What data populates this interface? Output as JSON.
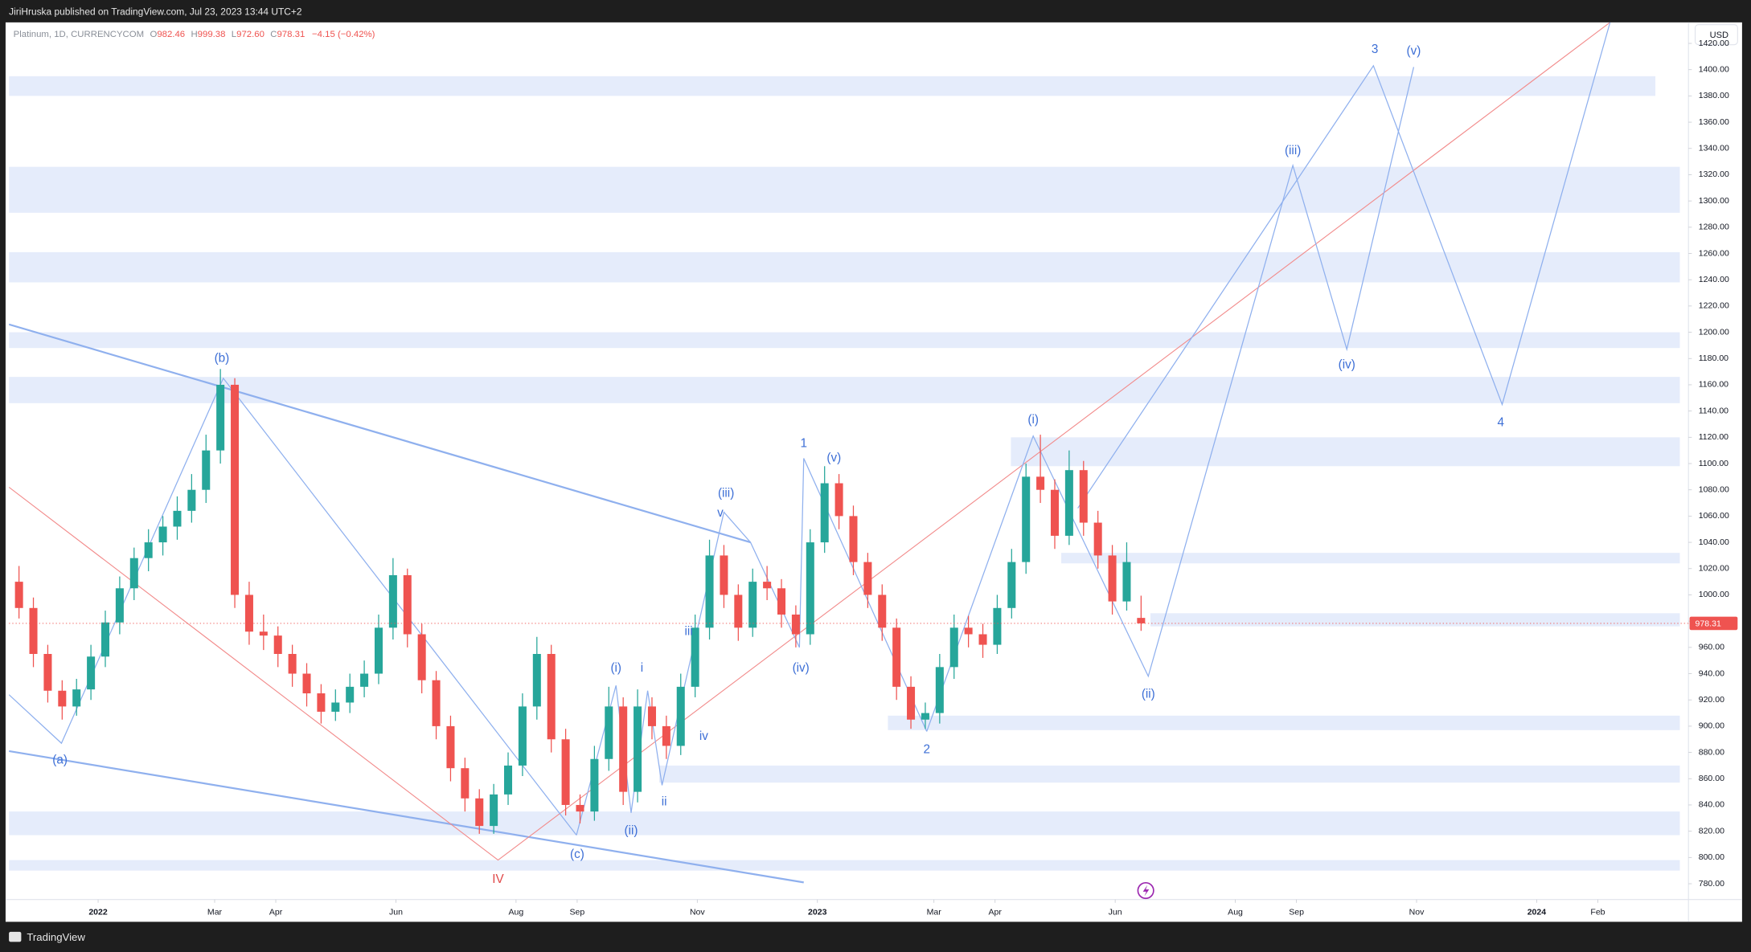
{
  "header": {
    "publisher": "JiriHruska published on TradingView.com, Jul 23, 2023 13:44 UTC+2"
  },
  "legend": {
    "symbol": "Platinum, 1D, CURRENCYCOM",
    "open_label": "O",
    "open": "982.46",
    "high_label": "H",
    "high": "999.38",
    "low_label": "L",
    "low": "972.60",
    "close_label": "C",
    "close": "978.31",
    "change": "−4.15 (−0.42%)"
  },
  "footer": {
    "brand": "TradingView"
  },
  "chart_data": {
    "type": "candlestick",
    "currency": "USD",
    "up_color": "#26a69a",
    "down_color": "#ef5350",
    "grid": false,
    "xlim": [
      2021.876,
      2024.211
    ],
    "ylim": [
      768,
      1436
    ],
    "xticks": [
      2022,
      {
        "value": 2022.162,
        "label": "Mar"
      },
      {
        "value": 2022.247,
        "label": "Apr"
      },
      {
        "value": 2022.414,
        "label": "Jun"
      },
      {
        "value": 2022.581,
        "label": "Aug"
      },
      {
        "value": 2022.666,
        "label": "Sep"
      },
      {
        "value": 2022.833,
        "label": "Nov"
      },
      2023,
      {
        "value": 2023.162,
        "label": "Mar"
      },
      {
        "value": 2023.247,
        "label": "Apr"
      },
      {
        "value": 2023.414,
        "label": "Jun"
      },
      {
        "value": 2023.581,
        "label": "Aug"
      },
      {
        "value": 2023.666,
        "label": "Sep"
      },
      {
        "value": 2023.833,
        "label": "Nov"
      },
      2024,
      {
        "value": 2024.085,
        "label": "Feb"
      }
    ],
    "yticks": [
      {
        "value": 780,
        "label": "780.00"
      },
      {
        "value": 800,
        "label": "800.00"
      },
      {
        "value": 820,
        "label": "820.00"
      },
      {
        "value": 840,
        "label": "840.00"
      },
      {
        "value": 860,
        "label": "860.00"
      },
      {
        "value": 880,
        "label": "880.00"
      },
      {
        "value": 900,
        "label": "900.00"
      },
      {
        "value": 920,
        "label": "920.00"
      },
      {
        "value": 940,
        "label": "940.00"
      },
      {
        "value": 960,
        "label": "960.00"
      },
      {
        "value": 980,
        "label": "980.00"
      },
      {
        "value": 1000,
        "label": "1000.00"
      },
      {
        "value": 1020,
        "label": "1020.00"
      },
      {
        "value": 1040,
        "label": "1040.00"
      },
      {
        "value": 1060,
        "label": "1060.00"
      },
      {
        "value": 1080,
        "label": "1080.00"
      },
      {
        "value": 1100,
        "label": "1100.00"
      },
      {
        "value": 1120,
        "label": "1120.00"
      },
      {
        "value": 1140,
        "label": "1140.00"
      },
      {
        "value": 1160,
        "label": "1160.00"
      },
      {
        "value": 1180,
        "label": "1180.00"
      },
      {
        "value": 1200,
        "label": "1200.00"
      },
      {
        "value": 1220,
        "label": "1220.00"
      },
      {
        "value": 1240,
        "label": "1240.00"
      },
      {
        "value": 1260,
        "label": "1260.00"
      },
      {
        "value": 1280,
        "label": "1280.00"
      },
      {
        "value": 1300,
        "label": "1300.00"
      },
      {
        "value": 1320,
        "label": "1320.00"
      },
      {
        "value": 1340,
        "label": "1340.00"
      },
      {
        "value": 1360,
        "label": "1360.00"
      },
      {
        "value": 1380,
        "label": "1380.00"
      },
      {
        "value": 1400,
        "label": "1400.00"
      },
      {
        "value": 1420,
        "label": "1420.00"
      }
    ],
    "last_price": 978.31,
    "x": [
      2021.89,
      2021.91,
      2021.93,
      2021.95,
      2021.97,
      2021.99,
      2022.01,
      2022.03,
      2022.05,
      2022.07,
      2022.09,
      2022.11,
      2022.13,
      2022.15,
      2022.17,
      2022.19,
      2022.21,
      2022.23,
      2022.25,
      2022.27,
      2022.29,
      2022.31,
      2022.33,
      2022.35,
      2022.37,
      2022.39,
      2022.41,
      2022.43,
      2022.45,
      2022.47,
      2022.49,
      2022.51,
      2022.53,
      2022.55,
      2022.57,
      2022.59,
      2022.61,
      2022.63,
      2022.65,
      2022.67,
      2022.69,
      2022.71,
      2022.73,
      2022.75,
      2022.77,
      2022.79,
      2022.81,
      2022.83,
      2022.85,
      2022.87,
      2022.89,
      2022.91,
      2022.93,
      2022.95,
      2022.97,
      2022.99,
      2023.01,
      2023.03,
      2023.05,
      2023.07,
      2023.09,
      2023.11,
      2023.13,
      2023.15,
      2023.17,
      2023.19,
      2023.21,
      2023.23,
      2023.25,
      2023.27,
      2023.29,
      2023.31,
      2023.33,
      2023.35,
      2023.37,
      2023.39,
      2023.41,
      2023.43,
      2023.45
    ],
    "ohlc": [
      [
        1010,
        1022,
        982,
        990
      ],
      [
        990,
        998,
        945,
        955
      ],
      [
        955,
        962,
        918,
        927
      ],
      [
        927,
        935,
        905,
        915
      ],
      [
        915,
        936,
        908,
        928
      ],
      [
        928,
        962,
        920,
        953
      ],
      [
        953,
        988,
        945,
        979
      ],
      [
        979,
        1014,
        970,
        1005
      ],
      [
        1005,
        1036,
        996,
        1028
      ],
      [
        1028,
        1050,
        1018,
        1040
      ],
      [
        1040,
        1060,
        1030,
        1052
      ],
      [
        1052,
        1075,
        1042,
        1064
      ],
      [
        1064,
        1092,
        1055,
        1080
      ],
      [
        1080,
        1122,
        1070,
        1110
      ],
      [
        1110,
        1172,
        1100,
        1160
      ],
      [
        1160,
        1165,
        990,
        1000
      ],
      [
        1000,
        1010,
        962,
        972
      ],
      [
        972,
        985,
        958,
        969
      ],
      [
        969,
        976,
        945,
        955
      ],
      [
        955,
        962,
        930,
        940
      ],
      [
        940,
        948,
        915,
        925
      ],
      [
        925,
        932,
        902,
        911
      ],
      [
        911,
        928,
        904,
        918
      ],
      [
        918,
        940,
        910,
        930
      ],
      [
        930,
        950,
        922,
        940
      ],
      [
        940,
        985,
        932,
        975
      ],
      [
        975,
        1028,
        966,
        1015
      ],
      [
        1015,
        1020,
        960,
        970
      ],
      [
        970,
        978,
        925,
        935
      ],
      [
        935,
        942,
        890,
        900
      ],
      [
        900,
        908,
        858,
        868
      ],
      [
        868,
        876,
        835,
        845
      ],
      [
        845,
        852,
        818,
        824
      ],
      [
        824,
        856,
        818,
        848
      ],
      [
        848,
        880,
        840,
        870
      ],
      [
        870,
        925,
        862,
        915
      ],
      [
        915,
        968,
        905,
        955
      ],
      [
        955,
        962,
        880,
        890
      ],
      [
        890,
        898,
        832,
        840
      ],
      [
        840,
        848,
        826,
        835
      ],
      [
        835,
        885,
        828,
        875
      ],
      [
        875,
        930,
        866,
        915
      ],
      [
        915,
        922,
        840,
        850
      ],
      [
        850,
        928,
        842,
        915
      ],
      [
        915,
        922,
        890,
        900
      ],
      [
        900,
        908,
        875,
        885
      ],
      [
        885,
        940,
        878,
        930
      ],
      [
        930,
        985,
        922,
        975
      ],
      [
        975,
        1042,
        966,
        1030
      ],
      [
        1030,
        1038,
        990,
        1000
      ],
      [
        1000,
        1008,
        965,
        975
      ],
      [
        975,
        1020,
        968,
        1010
      ],
      [
        1010,
        1022,
        996,
        1005
      ],
      [
        1005,
        1012,
        975,
        985
      ],
      [
        985,
        992,
        960,
        970
      ],
      [
        970,
        1050,
        962,
        1040
      ],
      [
        1040,
        1098,
        1032,
        1085
      ],
      [
        1085,
        1092,
        1050,
        1060
      ],
      [
        1060,
        1068,
        1015,
        1025
      ],
      [
        1025,
        1032,
        990,
        1000
      ],
      [
        1000,
        1008,
        965,
        975
      ],
      [
        975,
        982,
        920,
        930
      ],
      [
        930,
        938,
        898,
        905
      ],
      [
        905,
        918,
        898,
        910
      ],
      [
        910,
        955,
        902,
        945
      ],
      [
        945,
        985,
        936,
        975
      ],
      [
        975,
        984,
        960,
        970
      ],
      [
        970,
        978,
        952,
        962
      ],
      [
        962,
        1000,
        955,
        990
      ],
      [
        990,
        1035,
        982,
        1025
      ],
      [
        1025,
        1100,
        1016,
        1090
      ],
      [
        1090,
        1122,
        1070,
        1080
      ],
      [
        1080,
        1088,
        1035,
        1045
      ],
      [
        1045,
        1110,
        1038,
        1095
      ],
      [
        1095,
        1102,
        1045,
        1055
      ],
      [
        1055,
        1064,
        1020,
        1030
      ],
      [
        1030,
        1038,
        985,
        995
      ],
      [
        995,
        1040,
        988,
        1025
      ],
      [
        982.46,
        999.38,
        972.6,
        978.31
      ]
    ],
    "zones": [
      {
        "x": [
          2021.876,
          2024.165
        ],
        "y": [
          1380,
          1395
        ]
      },
      {
        "x": [
          2021.876,
          2024.199
        ],
        "y": [
          1291,
          1326
        ]
      },
      {
        "x": [
          2021.876,
          2024.199
        ],
        "y": [
          1238,
          1261
        ]
      },
      {
        "x": [
          2021.876,
          2024.199
        ],
        "y": [
          1188,
          1200
        ]
      },
      {
        "x": [
          2021.876,
          2024.199
        ],
        "y": [
          1146,
          1166
        ]
      },
      {
        "x": [
          2023.269,
          2024.199
        ],
        "y": [
          1098,
          1120
        ]
      },
      {
        "x": [
          2023.339,
          2024.199
        ],
        "y": [
          1024,
          1032
        ]
      },
      {
        "x": [
          2023.463,
          2024.199
        ],
        "y": [
          976,
          986
        ]
      },
      {
        "x": [
          2023.098,
          2024.199
        ],
        "y": [
          897,
          908
        ]
      },
      {
        "x": [
          2022.78,
          2024.199
        ],
        "y": [
          857,
          870
        ]
      },
      {
        "x": [
          2021.876,
          2024.199
        ],
        "y": [
          817,
          835
        ]
      },
      {
        "x": [
          2021.876,
          2024.199
        ],
        "y": [
          790,
          798
        ]
      }
    ],
    "lines": [
      {
        "color": "#8fb0ee",
        "width": 1.6,
        "points": [
          [
            2021.876,
            1206
          ],
          [
            2022.907,
            1040
          ]
        ]
      },
      {
        "color": "#8fb0ee",
        "width": 1.6,
        "points": [
          [
            2021.876,
            881
          ],
          [
            2022.981,
            781
          ]
        ]
      },
      {
        "color": "#f28b8b",
        "width": 0.8,
        "points": [
          [
            2021.876,
            1082
          ],
          [
            2022.556,
            798
          ],
          [
            2024.102,
            1436
          ]
        ]
      },
      {
        "color": "#8fb0ee",
        "width": 0.9,
        "points": [
          [
            2021.876,
            924
          ],
          [
            2021.949,
            887
          ],
          [
            2022.174,
            1165
          ],
          [
            2022.665,
            817
          ]
        ]
      },
      {
        "color": "#8fb0ee",
        "width": 0.9,
        "points": [
          [
            2022.665,
            817
          ],
          [
            2022.72,
            931
          ],
          [
            2022.741,
            834
          ],
          [
            2022.764,
            927
          ],
          [
            2022.784,
            855
          ],
          [
            2022.87,
            1063
          ],
          [
            2022.907,
            1040
          ],
          [
            2022.975,
            960
          ],
          [
            2022.981,
            1104
          ],
          [
            2023.152,
            896
          ]
        ]
      },
      {
        "color": "#8fb0ee",
        "width": 0.9,
        "points": [
          [
            2023.152,
            896
          ],
          [
            2023.3,
            1121
          ],
          [
            2023.46,
            938
          ],
          [
            2023.661,
            1327
          ],
          [
            2023.736,
            1187
          ],
          [
            2023.829,
            1402
          ]
        ]
      },
      {
        "color": "#8fb0ee",
        "width": 0.9,
        "points": [
          [
            2023.362,
            1066
          ],
          [
            2023.773,
            1403
          ],
          [
            2023.952,
            1145
          ],
          [
            2024.102,
            1436
          ]
        ]
      }
    ],
    "labels": [
      {
        "text": "(a)",
        "x": 2021.947,
        "y": 874,
        "color": "#3d6fd6"
      },
      {
        "text": "(b)",
        "x": 2022.172,
        "y": 1180,
        "color": "#3d6fd6"
      },
      {
        "text": "(c)",
        "x": 2022.666,
        "y": 802,
        "color": "#3d6fd6"
      },
      {
        "text": "IV",
        "x": 2022.556,
        "y": 783,
        "color": "#e04848"
      },
      {
        "text": "(i)",
        "x": 2022.72,
        "y": 944,
        "color": "#3d6fd6"
      },
      {
        "text": "i",
        "x": 2022.756,
        "y": 944,
        "color": "#3d6fd6"
      },
      {
        "text": "(ii)",
        "x": 2022.741,
        "y": 820,
        "color": "#3d6fd6"
      },
      {
        "text": "ii",
        "x": 2022.787,
        "y": 842,
        "color": "#3d6fd6"
      },
      {
        "text": "iii",
        "x": 2022.821,
        "y": 972,
        "color": "#3d6fd6"
      },
      {
        "text": "iv",
        "x": 2022.842,
        "y": 892,
        "color": "#3d6fd6"
      },
      {
        "text": "(iii)",
        "x": 2022.873,
        "y": 1077,
        "color": "#3d6fd6"
      },
      {
        "text": "v",
        "x": 2022.865,
        "y": 1062,
        "color": "#3d6fd6"
      },
      {
        "text": "1",
        "x": 2022.981,
        "y": 1115,
        "color": "#3d6fd6"
      },
      {
        "text": "(v)",
        "x": 2023.023,
        "y": 1104,
        "color": "#3d6fd6"
      },
      {
        "text": "(iv)",
        "x": 2022.977,
        "y": 944,
        "color": "#3d6fd6"
      },
      {
        "text": "2",
        "x": 2023.152,
        "y": 882,
        "color": "#3d6fd6"
      },
      {
        "text": "(i)",
        "x": 2023.3,
        "y": 1133,
        "color": "#3d6fd6"
      },
      {
        "text": "(ii)",
        "x": 2023.46,
        "y": 924,
        "color": "#3d6fd6"
      },
      {
        "text": "(iii)",
        "x": 2023.661,
        "y": 1338,
        "color": "#3d6fd6"
      },
      {
        "text": "(iv)",
        "x": 2023.736,
        "y": 1175,
        "color": "#3d6fd6"
      },
      {
        "text": "3",
        "x": 2023.775,
        "y": 1415,
        "color": "#3d6fd6"
      },
      {
        "text": "(v)",
        "x": 2023.829,
        "y": 1414,
        "color": "#3d6fd6"
      },
      {
        "text": "4",
        "x": 2023.95,
        "y": 1131,
        "color": "#3d6fd6"
      }
    ]
  }
}
